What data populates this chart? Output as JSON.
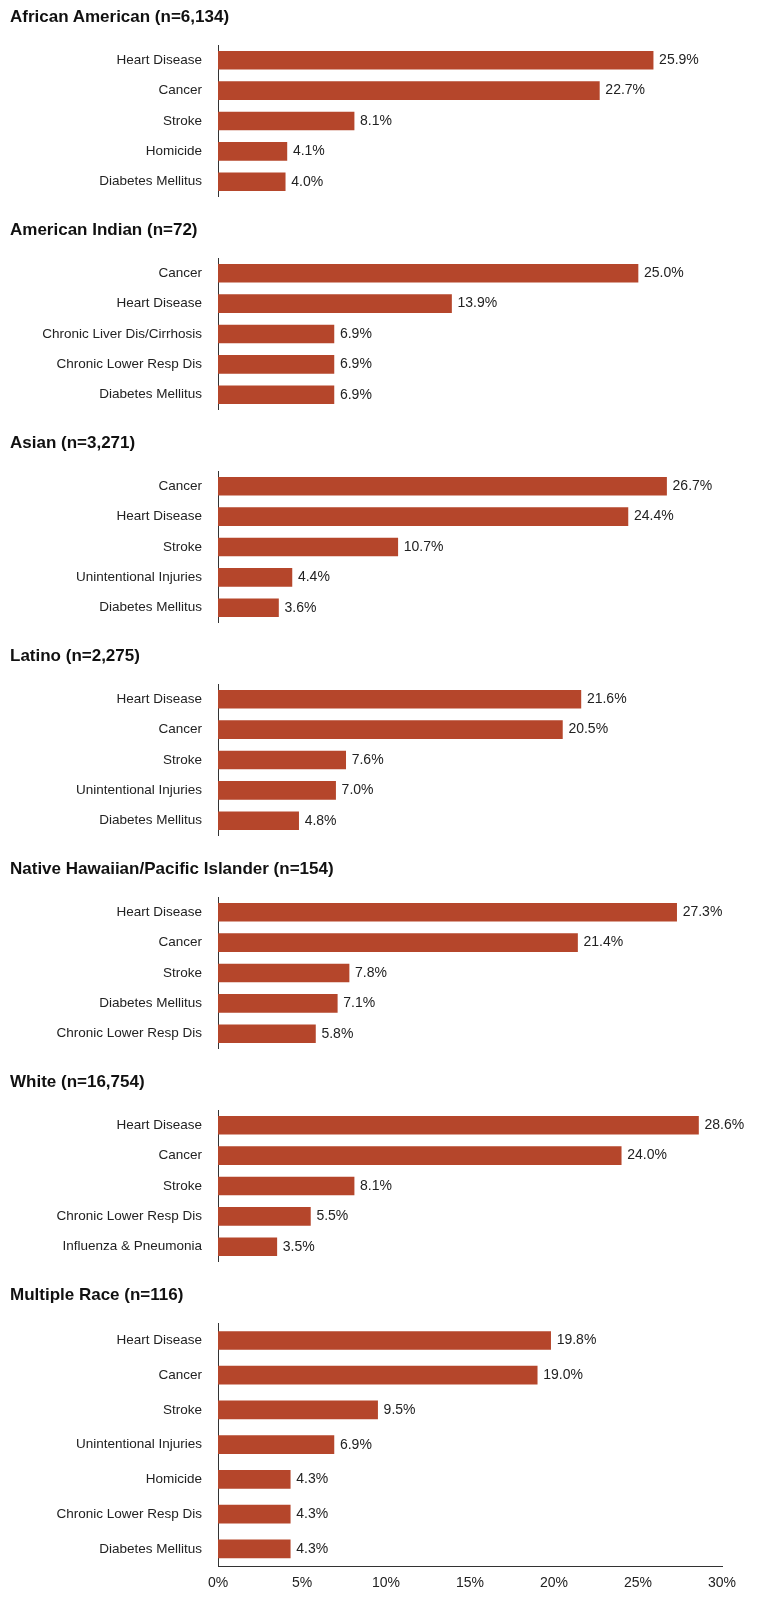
{
  "chart_data": [
    {
      "type": "bar",
      "orientation": "horizontal",
      "title": "African American (n=6,134)",
      "categories": [
        "Heart Disease",
        "Cancer",
        "Stroke",
        "Homicide",
        "Diabetes Mellitus"
      ],
      "values": [
        25.9,
        22.7,
        8.1,
        4.1,
        4.0
      ],
      "value_labels": [
        "25.9%",
        "22.7%",
        "8.1%",
        "4.1%",
        "4.0%"
      ],
      "color": "#b5462b",
      "xlim": [
        0,
        30
      ],
      "tick_labels": "y"
    },
    {
      "type": "bar",
      "orientation": "horizontal",
      "title": "American Indian (n=72)",
      "categories": [
        "Cancer",
        "Heart Disease",
        "Chronic Liver Dis/Cirrhosis",
        "Chronic Lower Resp Dis",
        "Diabetes Mellitus"
      ],
      "values": [
        25.0,
        13.9,
        6.9,
        6.9,
        6.9
      ],
      "value_labels": [
        "25.0%",
        "13.9%",
        "6.9%",
        "6.9%",
        "6.9%"
      ],
      "color": "#b5462b",
      "xlim": [
        0,
        30
      ],
      "tick_labels": "y"
    },
    {
      "type": "bar",
      "orientation": "horizontal",
      "title": "Asian (n=3,271)",
      "categories": [
        "Cancer",
        "Heart Disease",
        "Stroke",
        "Unintentional Injuries",
        "Diabetes Mellitus"
      ],
      "values": [
        26.7,
        24.4,
        10.7,
        4.4,
        3.6
      ],
      "value_labels": [
        "26.7%",
        "24.4%",
        "10.7%",
        "4.4%",
        "3.6%"
      ],
      "color": "#b5462b",
      "xlim": [
        0,
        30
      ],
      "tick_labels": "y"
    },
    {
      "type": "bar",
      "orientation": "horizontal",
      "title": "Latino (n=2,275)",
      "categories": [
        "Heart Disease",
        "Cancer",
        "Stroke",
        "Unintentional Injuries",
        "Diabetes Mellitus"
      ],
      "values": [
        21.6,
        20.5,
        7.6,
        7.0,
        4.8
      ],
      "value_labels": [
        "21.6%",
        "20.5%",
        "7.6%",
        "7.0%",
        "4.8%"
      ],
      "color": "#b5462b",
      "xlim": [
        0,
        30
      ],
      "tick_labels": "y"
    },
    {
      "type": "bar",
      "orientation": "horizontal",
      "title": "Native Hawaiian/Pacific Islander (n=154)",
      "categories": [
        "Heart Disease",
        "Cancer",
        "Stroke",
        "Diabetes Mellitus",
        "Chronic Lower Resp Dis"
      ],
      "values": [
        27.3,
        21.4,
        7.8,
        7.1,
        5.8
      ],
      "value_labels": [
        "27.3%",
        "21.4%",
        "7.8%",
        "7.1%",
        "5.8%"
      ],
      "color": "#b5462b",
      "xlim": [
        0,
        30
      ],
      "tick_labels": "y"
    },
    {
      "type": "bar",
      "orientation": "horizontal",
      "title": "White (n=16,754)",
      "categories": [
        "Heart Disease",
        "Cancer",
        "Stroke",
        "Chronic Lower Resp Dis",
        "Influenza & Pneumonia"
      ],
      "values": [
        28.6,
        24.0,
        8.1,
        5.5,
        3.5
      ],
      "value_labels": [
        "28.6%",
        "24.0%",
        "8.1%",
        "5.5%",
        "3.5%"
      ],
      "color": "#b5462b",
      "xlim": [
        0,
        30
      ],
      "tick_labels": "y"
    },
    {
      "type": "bar",
      "orientation": "horizontal",
      "title": "Multiple Race (n=116)",
      "categories": [
        "Heart Disease",
        "Cancer",
        "Stroke",
        "Unintentional Injuries",
        "Homicide",
        "Chronic Lower Resp Dis",
        "Diabetes Mellitus"
      ],
      "values": [
        19.8,
        19.0,
        9.5,
        6.9,
        4.3,
        4.3,
        4.3
      ],
      "value_labels": [
        "19.8%",
        "19.0%",
        "9.5%",
        "6.9%",
        "4.3%",
        "4.3%",
        "4.3%"
      ],
      "color": "#b5462b",
      "xlim": [
        0,
        30
      ],
      "xticks": [
        {
          "value": 0,
          "label": "0%"
        },
        {
          "value": 5,
          "label": "5%"
        },
        {
          "value": 10,
          "label": "10%"
        },
        {
          "value": 15,
          "label": "15%"
        },
        {
          "value": 20,
          "label": "20%"
        },
        {
          "value": 25,
          "label": "25%"
        },
        {
          "value": 30,
          "label": "30%"
        }
      ]
    }
  ]
}
